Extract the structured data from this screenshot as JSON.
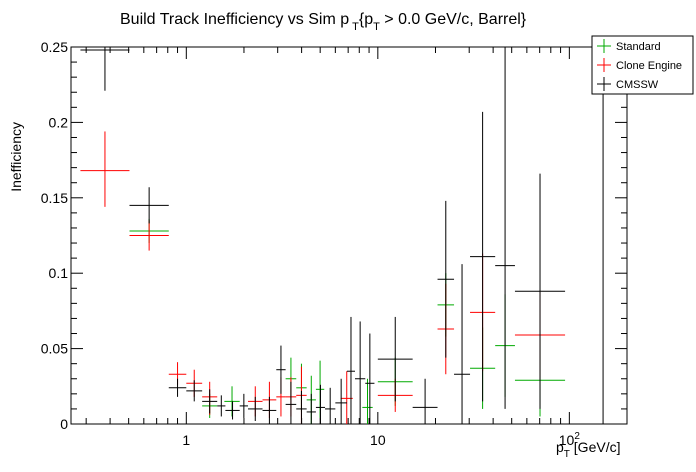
{
  "chart_data": {
    "type": "scatter",
    "title_parts": {
      "pre": "Build Track Inefficiency vs Sim p",
      "sub1": "T",
      "mid": "{p",
      "sub2": "T",
      "post": " > 0.0 GeV/c, Barrel}"
    },
    "ylabel": "Inefficiency",
    "xlabel_parts": {
      "p": "p",
      "sub": "T",
      "rest": " [GeV/c]"
    },
    "xscale": "log",
    "xlim": [
      0.25,
      200
    ],
    "ylim": [
      0,
      0.25
    ],
    "yticks": [
      {
        "v": 0,
        "label": "0"
      },
      {
        "v": 0.05,
        "label": "0.05"
      },
      {
        "v": 0.1,
        "label": "0.1"
      },
      {
        "v": 0.15,
        "label": "0.15"
      },
      {
        "v": 0.2,
        "label": "0.2"
      },
      {
        "v": 0.25,
        "label": "0.25"
      }
    ],
    "xticks": [
      {
        "v": 1,
        "label": "1"
      },
      {
        "v": 10,
        "label": "10"
      },
      {
        "v": 100,
        "label": "10",
        "sup": "2"
      }
    ],
    "legend_position": "top-right",
    "series": [
      {
        "name": "Standard",
        "color": "#00aa00",
        "points": [
          {
            "xlo": 0.505,
            "xhi": 0.81,
            "y": 0.128,
            "ylo": 0.12,
            "yhi": 0.136
          },
          {
            "xlo": 1.21,
            "xhi": 1.45,
            "y": 0.012,
            "ylo": 0.004,
            "yhi": 0.02
          },
          {
            "xlo": 1.58,
            "xhi": 1.9,
            "y": 0.015,
            "ylo": 0.005,
            "yhi": 0.025
          },
          {
            "xlo": 3.3,
            "xhi": 3.75,
            "y": 0.03,
            "ylo": 0.016,
            "yhi": 0.044
          },
          {
            "xlo": 3.75,
            "xhi": 4.25,
            "y": 0.024,
            "ylo": 0.008,
            "yhi": 0.04
          },
          {
            "xlo": 4.25,
            "xhi": 4.75,
            "y": 0.016,
            "ylo": 0.0,
            "yhi": 0.032
          },
          {
            "xlo": 4.75,
            "xhi": 5.25,
            "y": 0.023,
            "ylo": 0.004,
            "yhi": 0.042
          },
          {
            "xlo": 8.3,
            "xhi": 9.4,
            "y": 0.011,
            "ylo": 0.0,
            "yhi": 0.03
          },
          {
            "xlo": 10.0,
            "xhi": 15.2,
            "y": 0.028,
            "ylo": 0.012,
            "yhi": 0.044
          },
          {
            "xlo": 20.5,
            "xhi": 25.0,
            "y": 0.079,
            "ylo": 0.058,
            "yhi": 0.1
          },
          {
            "xlo": 30.3,
            "xhi": 41.0,
            "y": 0.037,
            "ylo": 0.01,
            "yhi": 0.064
          },
          {
            "xlo": 41.0,
            "xhi": 52.0,
            "y": 0.052,
            "ylo": 0.018,
            "yhi": 0.086
          },
          {
            "xlo": 52.0,
            "xhi": 95.0,
            "y": 0.029,
            "ylo": 0.005,
            "yhi": 0.056
          }
        ]
      },
      {
        "name": "Clone Engine",
        "color": "#ff0000",
        "points": [
          {
            "xlo": 0.28,
            "xhi": 0.505,
            "y": 0.168,
            "ylo": 0.144,
            "yhi": 0.194
          },
          {
            "xlo": 0.505,
            "xhi": 0.81,
            "y": 0.125,
            "ylo": 0.115,
            "yhi": 0.135
          },
          {
            "xlo": 0.81,
            "xhi": 1.0,
            "y": 0.033,
            "ylo": 0.026,
            "yhi": 0.041
          },
          {
            "xlo": 1.0,
            "xhi": 1.21,
            "y": 0.027,
            "ylo": 0.018,
            "yhi": 0.036
          },
          {
            "xlo": 1.21,
            "xhi": 1.45,
            "y": 0.018,
            "ylo": 0.006,
            "yhi": 0.028
          },
          {
            "xlo": 2.1,
            "xhi": 2.5,
            "y": 0.015,
            "ylo": 0.005,
            "yhi": 0.025
          },
          {
            "xlo": 2.5,
            "xhi": 2.95,
            "y": 0.016,
            "ylo": 0.004,
            "yhi": 0.028
          },
          {
            "xlo": 2.95,
            "xhi": 3.3,
            "y": 0.018,
            "ylo": 0.005,
            "yhi": 0.031
          },
          {
            "xlo": 3.3,
            "xhi": 3.75,
            "y": 0.018,
            "ylo": 0.005,
            "yhi": 0.031
          },
          {
            "xlo": 3.75,
            "xhi": 4.25,
            "y": 0.019,
            "ylo": 0.0,
            "yhi": 0.038
          },
          {
            "xlo": 6.4,
            "xhi": 7.4,
            "y": 0.017,
            "ylo": 0.0,
            "yhi": 0.035
          },
          {
            "xlo": 10.0,
            "xhi": 15.2,
            "y": 0.019,
            "ylo": 0.008,
            "yhi": 0.03
          },
          {
            "xlo": 20.5,
            "xhi": 25.0,
            "y": 0.063,
            "ylo": 0.033,
            "yhi": 0.093
          },
          {
            "xlo": 30.3,
            "xhi": 41.0,
            "y": 0.074,
            "ylo": 0.035,
            "yhi": 0.113
          },
          {
            "xlo": 52.0,
            "xhi": 95.0,
            "y": 0.059,
            "ylo": 0.03,
            "yhi": 0.088
          }
        ]
      },
      {
        "name": "CMSSW",
        "color": "#000000",
        "points": [
          {
            "xlo": 0.28,
            "xhi": 0.505,
            "y": 0.248,
            "ylo": 0.221,
            "yhi": 0.25
          },
          {
            "xlo": 0.505,
            "xhi": 0.81,
            "y": 0.145,
            "ylo": 0.133,
            "yhi": 0.157
          },
          {
            "xlo": 0.81,
            "xhi": 1.0,
            "y": 0.024,
            "ylo": 0.018,
            "yhi": 0.03
          },
          {
            "xlo": 1.0,
            "xhi": 1.21,
            "y": 0.022,
            "ylo": 0.015,
            "yhi": 0.029
          },
          {
            "xlo": 1.21,
            "xhi": 1.45,
            "y": 0.015,
            "ylo": 0.007,
            "yhi": 0.023
          },
          {
            "xlo": 1.45,
            "xhi": 1.6,
            "y": 0.012,
            "ylo": 0.005,
            "yhi": 0.019
          },
          {
            "xlo": 1.6,
            "xhi": 1.9,
            "y": 0.009,
            "ylo": 0.003,
            "yhi": 0.015
          },
          {
            "xlo": 1.9,
            "xhi": 2.1,
            "y": 0.012,
            "ylo": 0.004,
            "yhi": 0.02
          },
          {
            "xlo": 2.1,
            "xhi": 2.5,
            "y": 0.01,
            "ylo": 0.002,
            "yhi": 0.018
          },
          {
            "xlo": 2.5,
            "xhi": 2.95,
            "y": 0.009,
            "ylo": 0.0,
            "yhi": 0.018
          },
          {
            "xlo": 2.95,
            "xhi": 3.3,
            "y": 0.036,
            "ylo": 0.02,
            "yhi": 0.052
          },
          {
            "xlo": 3.3,
            "xhi": 3.75,
            "y": 0.013,
            "ylo": 0.0,
            "yhi": 0.028
          },
          {
            "xlo": 3.75,
            "xhi": 4.25,
            "y": 0.01,
            "ylo": 0.0,
            "yhi": 0.022
          },
          {
            "xlo": 4.25,
            "xhi": 4.75,
            "y": 0.008,
            "ylo": 0.0,
            "yhi": 0.02
          },
          {
            "xlo": 4.75,
            "xhi": 5.3,
            "y": 0.011,
            "ylo": 0.0,
            "yhi": 0.026
          },
          {
            "xlo": 5.3,
            "xhi": 6.0,
            "y": 0.01,
            "ylo": 0.0,
            "yhi": 0.024
          },
          {
            "xlo": 6.0,
            "xhi": 6.9,
            "y": 0.014,
            "ylo": 0.0,
            "yhi": 0.03
          },
          {
            "xlo": 6.9,
            "xhi": 7.6,
            "y": 0.035,
            "ylo": 0.0,
            "yhi": 0.071
          },
          {
            "xlo": 7.6,
            "xhi": 8.6,
            "y": 0.03,
            "ylo": 0.0,
            "yhi": 0.068
          },
          {
            "xlo": 8.6,
            "xhi": 9.6,
            "y": 0.027,
            "ylo": 0.0,
            "yhi": 0.06
          },
          {
            "xlo": 10.0,
            "xhi": 15.2,
            "y": 0.043,
            "ylo": 0.015,
            "yhi": 0.071
          },
          {
            "xlo": 15.2,
            "xhi": 20.5,
            "y": 0.011,
            "ylo": 0.0,
            "yhi": 0.03
          },
          {
            "xlo": 20.5,
            "xhi": 25.0,
            "y": 0.096,
            "ylo": 0.044,
            "yhi": 0.148
          },
          {
            "xlo": 25.0,
            "xhi": 30.3,
            "y": 0.033,
            "ylo": 0.0,
            "yhi": 0.106
          },
          {
            "xlo": 30.3,
            "xhi": 41.0,
            "y": 0.111,
            "ylo": 0.015,
            "yhi": 0.207
          },
          {
            "xlo": 41.0,
            "xhi": 52.0,
            "y": 0.105,
            "ylo": 0.01,
            "yhi": 0.25
          },
          {
            "xlo": 52.0,
            "xhi": 95.0,
            "y": 0.088,
            "ylo": 0.01,
            "yhi": 0.166
          },
          {
            "xlo": 150,
            "xhi": 150,
            "y": 0.25,
            "ylo": 0.0,
            "yhi": 0.25
          }
        ]
      }
    ]
  }
}
